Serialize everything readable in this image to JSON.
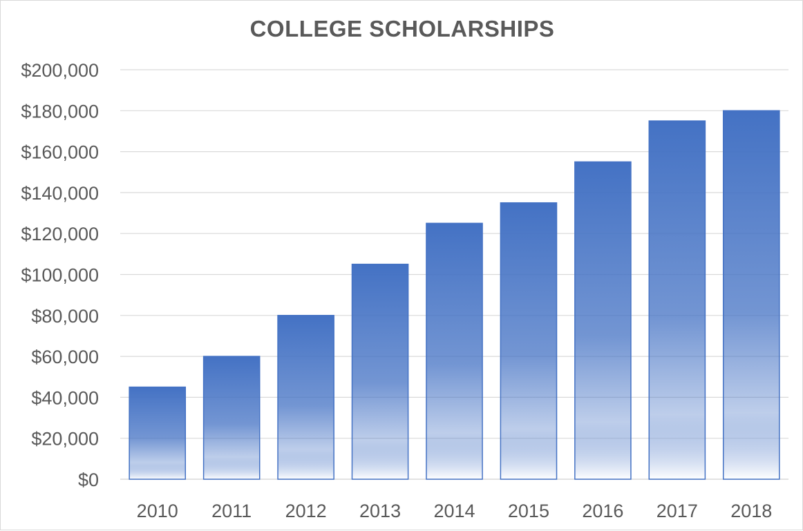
{
  "chart_data": {
    "type": "bar",
    "title": "COLLEGE SCHOLARSHIPS",
    "categories": [
      "2010",
      "2011",
      "2012",
      "2013",
      "2014",
      "2015",
      "2016",
      "2017",
      "2018"
    ],
    "values": [
      45000,
      60000,
      80000,
      105000,
      125000,
      135000,
      155000,
      175000,
      180000
    ],
    "xlabel": "",
    "ylabel": "",
    "ylim": [
      0,
      200000
    ],
    "yticks": [
      "$0",
      "$20,000",
      "$40,000",
      "$60,000",
      "$80,000",
      "$100,000",
      "$120,000",
      "$140,000",
      "$160,000",
      "$180,000",
      "$200,000"
    ],
    "grid": true,
    "legend": "none",
    "colors": {
      "bar_top": "#4472c4",
      "bar_bottom": "#ffffff",
      "bar_border": "#4472c4",
      "grid": "#d9d9d9",
      "text": "#595959"
    }
  }
}
